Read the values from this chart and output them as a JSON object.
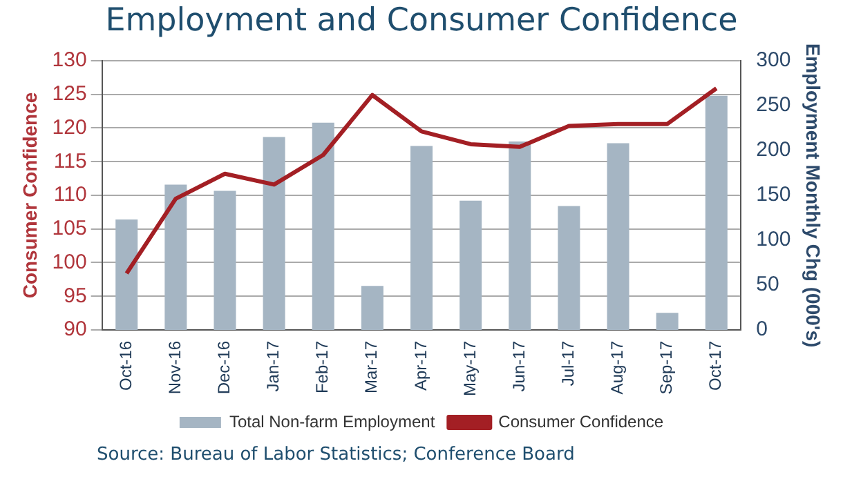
{
  "chart_data": {
    "type": "bar",
    "title": "Employment and Consumer Confidence",
    "categories": [
      "Oct-16",
      "Nov-16",
      "Dec-16",
      "Jan-17",
      "Feb-17",
      "Mar-17",
      "Apr-17",
      "May-17",
      "Jun-17",
      "Jul-17",
      "Aug-17",
      "Sep-17",
      "Oct-17"
    ],
    "series": [
      {
        "name": "Total Non-farm Employment",
        "axis": "y2",
        "color": "#a5b5c3",
        "values": [
          123,
          162,
          155,
          215,
          231,
          49,
          205,
          144,
          210,
          138,
          208,
          19,
          261
        ]
      },
      {
        "name": "Consumer Confidence",
        "type": "line",
        "axis": "y",
        "color": "#a31f24",
        "values": [
          98.4,
          109.5,
          113.2,
          111.6,
          116,
          124.9,
          119.5,
          117.6,
          117.2,
          120.3,
          120.6,
          120.6,
          125.9
        ]
      }
    ],
    "ylabel": "Consumer Confidence",
    "y2label": "Employment Monthly Chg (000's)",
    "ylim": [
      90,
      130
    ],
    "yticks": [
      90,
      95,
      100,
      105,
      110,
      115,
      120,
      125,
      130
    ],
    "y2lim": [
      0,
      300
    ],
    "y2ticks": [
      0,
      50,
      100,
      150,
      200,
      250,
      300
    ],
    "grid": "y",
    "legend": "bottom",
    "marker": "none",
    "annotations": [
      "Source: Bureau of Labor Statistics; Conference Board"
    ]
  }
}
